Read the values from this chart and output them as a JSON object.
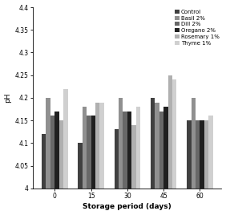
{
  "categories": [
    0,
    15,
    30,
    45,
    60
  ],
  "series": {
    "Control": [
      4.12,
      4.1,
      4.13,
      4.2,
      4.15
    ],
    "Basil 2%": [
      4.2,
      4.18,
      4.2,
      4.19,
      4.2
    ],
    "Dill 2%": [
      4.16,
      4.16,
      4.17,
      4.17,
      4.15
    ],
    "Oregano 2%": [
      4.17,
      4.16,
      4.17,
      4.18,
      4.15
    ],
    "Rosemary 1%": [
      4.15,
      4.19,
      4.14,
      4.25,
      4.15
    ],
    "Thyme 1%": [
      4.22,
      4.19,
      4.18,
      4.24,
      4.16
    ]
  },
  "colors": {
    "Control": "#404040",
    "Basil 2%": "#909090",
    "Dill 2%": "#686868",
    "Oregano 2%": "#202020",
    "Rosemary 1%": "#b0b0b0",
    "Thyme 1%": "#d0d0d0"
  },
  "ylabel": "pH",
  "xlabel": "Storage period (days)",
  "ylim": [
    4.0,
    4.4
  ],
  "yticks": [
    4.0,
    4.05,
    4.1,
    4.15,
    4.2,
    4.25,
    4.3,
    4.35,
    4.4
  ],
  "ytick_labels": [
    "4",
    "4.05",
    "4.1",
    "4.15",
    "4.2",
    "4.25",
    "4.3",
    "4.35",
    "4.4"
  ],
  "bar_width": 0.12,
  "legend_fontsize": 5.0,
  "axis_fontsize": 6.5,
  "tick_fontsize": 5.5,
  "xlabel_fontsize": 6.5
}
